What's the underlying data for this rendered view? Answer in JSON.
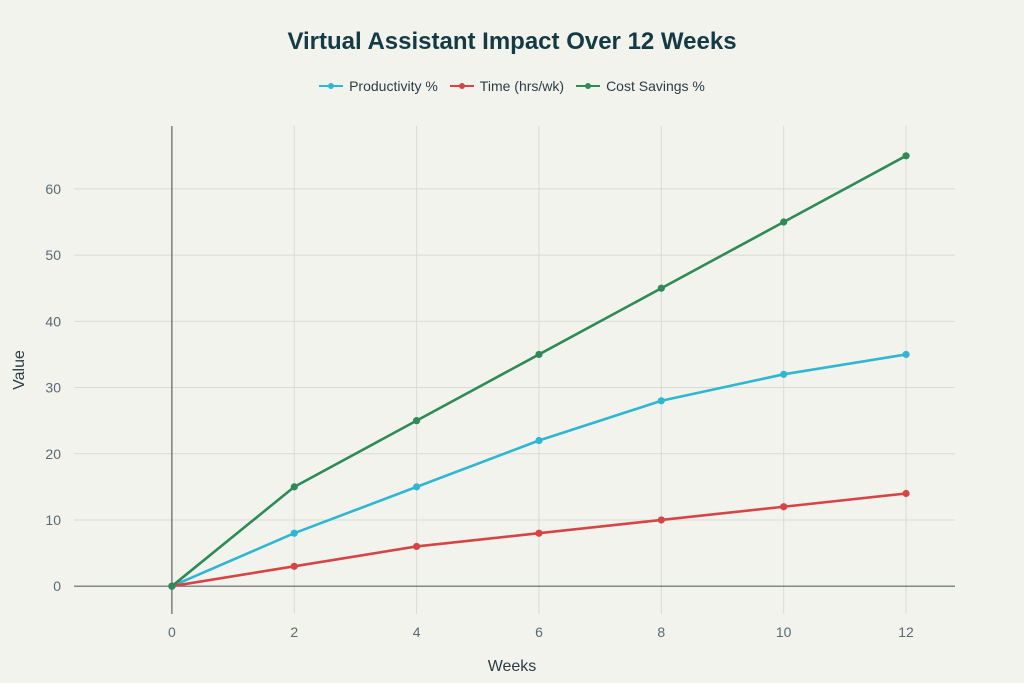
{
  "chart_data": {
    "type": "line",
    "title": "Virtual Assistant Impact Over 12 Weeks",
    "xlabel": "Weeks",
    "ylabel": "Value",
    "x": [
      0,
      2,
      4,
      6,
      8,
      10,
      12
    ],
    "xlim": [
      -1.6,
      12.8
    ],
    "ylim": [
      -4.2,
      69.5
    ],
    "xticks": [
      "0",
      "2",
      "4",
      "6",
      "8",
      "10",
      "12"
    ],
    "yticks": [
      "0",
      "10",
      "20",
      "30",
      "40",
      "50",
      "60"
    ],
    "grid": true,
    "legend_position": "top-center",
    "series": [
      {
        "name": "Productivity %",
        "color": "#2fb6d0",
        "values": [
          0,
          8,
          15,
          22,
          28,
          32,
          35
        ]
      },
      {
        "name": "Time (hrs/wk)",
        "color": "#d64545",
        "values": [
          0,
          3,
          6,
          8,
          10,
          12,
          14
        ]
      },
      {
        "name": "Cost Savings %",
        "color": "#2e8b57",
        "values": [
          0,
          15,
          25,
          35,
          45,
          55,
          65
        ]
      }
    ]
  }
}
